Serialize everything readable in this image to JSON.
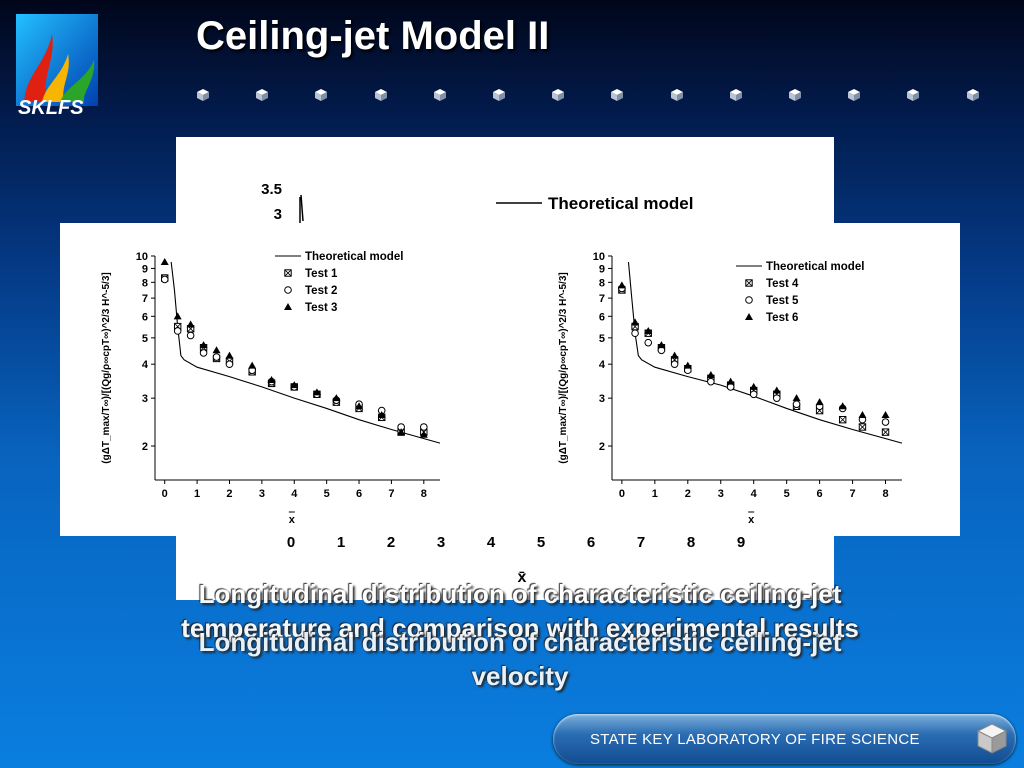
{
  "slide": {
    "title": "Ceiling-jet Model II",
    "logo_text": "SKLFS",
    "footer": "STATE KEY LABORATORY OF FIRE SCIENCE",
    "caption_back": "Longitudinal distribution of characteristic ceiling-jet temperature and comparison with experimental results",
    "caption_front": "Longitudinal distribution of characteristic ceiling-jet velocity",
    "gem_count": 14
  },
  "colors": {
    "title": "#ffffff",
    "background_top": "#01061a",
    "background_bottom": "#0a7ee0"
  },
  "chart_data": [
    {
      "type": "line",
      "name": "background chart (partially hidden)",
      "visible_yticks": [
        "3.5",
        "3"
      ],
      "xticks": [
        "0",
        "1",
        "2",
        "3",
        "4",
        "5",
        "6",
        "7",
        "8",
        "9"
      ],
      "xlabel": "x̄",
      "legend": [
        "Theoretical model"
      ]
    },
    {
      "type": "scatter",
      "yscale": "log",
      "ylim": [
        1.5,
        10
      ],
      "xlim": [
        -0.3,
        8.5
      ],
      "xticks": [
        0,
        1,
        2,
        3,
        4,
        5,
        6,
        7,
        8
      ],
      "yticks": [
        2,
        3,
        4,
        5,
        6,
        7,
        8,
        9,
        10
      ],
      "xlabel": "x",
      "ylabel": "(gΔT_max/T∞)/[(Qg/ρ∞cpT∞)^2/3 H^-5/3]",
      "legend_position": "top-right",
      "model": {
        "name": "Theoretical model",
        "x": [
          0.2,
          0.3,
          0.4,
          0.5,
          0.6,
          1,
          2,
          3,
          4,
          5,
          6,
          7,
          8.5
        ],
        "y": [
          9.5,
          7.5,
          5.5,
          4.3,
          4.15,
          3.9,
          3.6,
          3.3,
          3.0,
          2.75,
          2.5,
          2.3,
          2.05
        ]
      },
      "series": [
        {
          "name": "Test 1",
          "marker": "box-x",
          "x": [
            0,
            0.4,
            0.8,
            1.2,
            1.6,
            2,
            2.7,
            3.3,
            4,
            4.7,
            5.3,
            6,
            6.7,
            7.3,
            8
          ],
          "y": [
            8.3,
            5.5,
            5.4,
            4.6,
            4.2,
            4.1,
            3.75,
            3.4,
            3.3,
            3.1,
            2.9,
            2.75,
            2.55,
            2.25,
            2.25
          ]
        },
        {
          "name": "Test 2",
          "marker": "circle",
          "x": [
            0,
            0.4,
            0.8,
            1.2,
            1.6,
            2,
            2.7,
            3.3,
            4,
            4.7,
            5.3,
            6,
            6.7,
            7.3,
            8
          ],
          "y": [
            8.2,
            5.3,
            5.1,
            4.4,
            4.25,
            4.0,
            3.8,
            3.45,
            3.3,
            3.1,
            2.95,
            2.85,
            2.7,
            2.35,
            2.35
          ]
        },
        {
          "name": "Test 3",
          "marker": "triangle",
          "x": [
            0,
            0.4,
            0.8,
            1.2,
            1.6,
            2,
            2.7,
            3.3,
            4,
            4.7,
            5.3,
            6,
            6.7,
            7.3,
            8
          ],
          "y": [
            9.5,
            6.0,
            5.6,
            4.7,
            4.5,
            4.3,
            3.95,
            3.5,
            3.35,
            3.15,
            3.0,
            2.8,
            2.6,
            2.25,
            2.2
          ]
        }
      ]
    },
    {
      "type": "scatter",
      "yscale": "log",
      "ylim": [
        1.5,
        10
      ],
      "xlim": [
        -0.3,
        8.5
      ],
      "xticks": [
        0,
        1,
        2,
        3,
        4,
        5,
        6,
        7,
        8
      ],
      "yticks": [
        2,
        3,
        4,
        5,
        6,
        7,
        8,
        9,
        10
      ],
      "xlabel": "x",
      "ylabel": "(gΔT_max/T∞)/[(Qg/ρ∞cpT∞)^2/3 H^-5/3]",
      "legend_position": "top-right",
      "model": {
        "name": "Theoretical model",
        "x": [
          0.2,
          0.3,
          0.4,
          0.5,
          0.6,
          1,
          2,
          3,
          4,
          5,
          6,
          7,
          8.5
        ],
        "y": [
          9.5,
          7.0,
          5.2,
          4.3,
          4.15,
          3.9,
          3.6,
          3.35,
          3.05,
          2.75,
          2.5,
          2.3,
          2.05
        ]
      },
      "series": [
        {
          "name": "Test 4",
          "marker": "box-x",
          "x": [
            0,
            0.4,
            0.8,
            1.2,
            1.6,
            2,
            2.7,
            3.3,
            4,
            4.7,
            5.3,
            6,
            6.7,
            7.3,
            8
          ],
          "y": [
            7.5,
            5.5,
            5.2,
            4.6,
            4.15,
            3.85,
            3.55,
            3.35,
            3.2,
            3.1,
            2.8,
            2.7,
            2.5,
            2.35,
            2.25
          ]
        },
        {
          "name": "Test 5",
          "marker": "circle",
          "x": [
            0,
            0.4,
            0.8,
            1.2,
            1.6,
            2,
            2.7,
            3.3,
            4,
            4.7,
            5.3,
            6,
            6.7,
            7.3,
            8
          ],
          "y": [
            7.6,
            5.2,
            4.8,
            4.5,
            4.0,
            3.8,
            3.45,
            3.3,
            3.1,
            3.0,
            2.85,
            2.8,
            2.75,
            2.5,
            2.45
          ]
        },
        {
          "name": "Test 6",
          "marker": "triangle",
          "x": [
            0,
            0.4,
            0.8,
            1.2,
            1.6,
            2,
            2.7,
            3.3,
            4,
            4.7,
            5.3,
            6,
            6.7,
            7.3,
            8
          ],
          "y": [
            7.8,
            5.7,
            5.3,
            4.7,
            4.3,
            3.95,
            3.65,
            3.45,
            3.3,
            3.2,
            3.0,
            2.9,
            2.8,
            2.6,
            2.6
          ]
        }
      ]
    }
  ]
}
